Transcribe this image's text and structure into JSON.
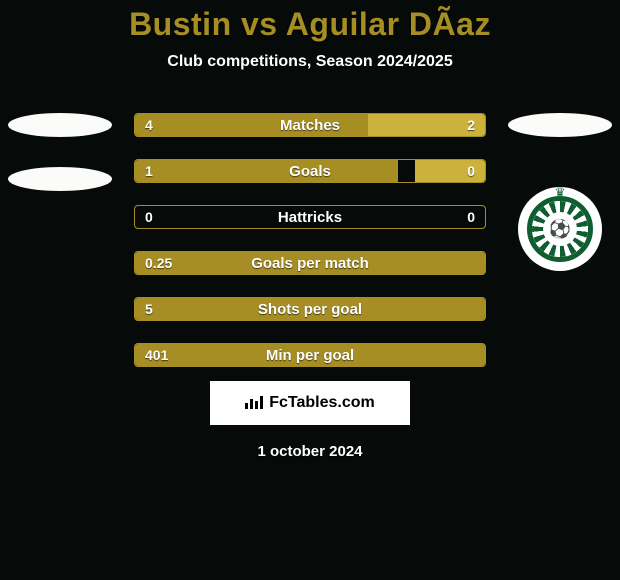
{
  "title_color": "#a68e25",
  "background_color": "#060b09",
  "bar_border_color": "#a68e25",
  "header": {
    "title": "Bustin vs Aguilar DÃ­az",
    "subtitle": "Club competitions, Season 2024/2025"
  },
  "left_side": {
    "ellipse_color": "#fbfbf9",
    "ellipse_count": 2
  },
  "right_side": {
    "ellipse_color": "#fbfbf9",
    "club": {
      "name": "Lommel United",
      "primary_color": "#0e5e31",
      "secondary_color": "#ffffff"
    }
  },
  "stats": [
    {
      "label": "Matches",
      "left_value": "4",
      "right_value": "2",
      "left_width_pct": 66.7,
      "right_width_pct": 33.3,
      "left_color": "#a68e25",
      "right_color": "#ccb13a"
    },
    {
      "label": "Goals",
      "left_value": "1",
      "right_value": "0",
      "left_width_pct": 75,
      "right_width_pct": 20,
      "left_color": "#a68e25",
      "right_color": "#ccb13a"
    },
    {
      "label": "Hattricks",
      "left_value": "0",
      "right_value": "0",
      "left_width_pct": 0,
      "right_width_pct": 0,
      "left_color": "#a68e25",
      "right_color": "#ccb13a"
    },
    {
      "label": "Goals per match",
      "left_value": "0.25",
      "right_value": "",
      "left_width_pct": 100,
      "right_width_pct": 0,
      "left_color": "#a68e25",
      "right_color": "#ccb13a"
    },
    {
      "label": "Shots per goal",
      "left_value": "5",
      "right_value": "",
      "left_width_pct": 100,
      "right_width_pct": 0,
      "left_color": "#a68e25",
      "right_color": "#ccb13a"
    },
    {
      "label": "Min per goal",
      "left_value": "401",
      "right_value": "",
      "left_width_pct": 100,
      "right_width_pct": 0,
      "left_color": "#a68e25",
      "right_color": "#ccb13a"
    }
  ],
  "brand": {
    "text": "FcTables.com",
    "background": "#ffffff",
    "text_color": "#000000"
  },
  "date": "1 october 2024"
}
